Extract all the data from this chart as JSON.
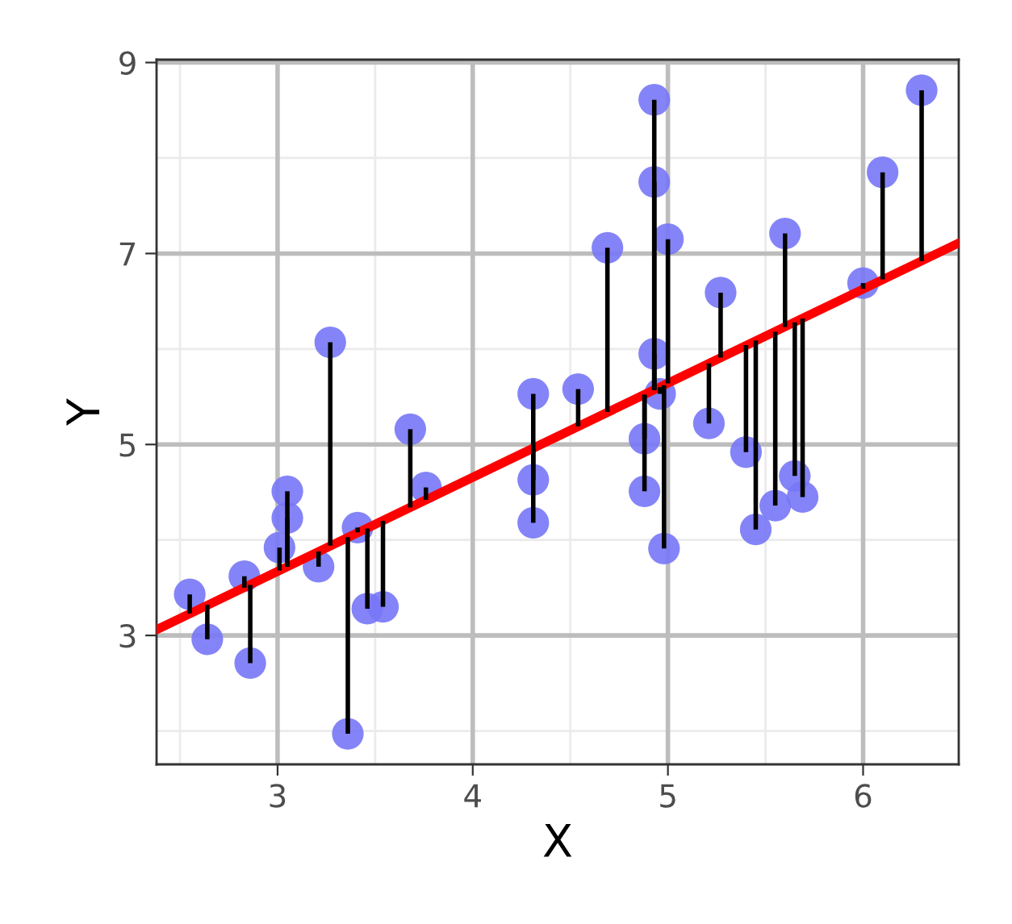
{
  "chart_data": {
    "type": "scatter",
    "xlabel": "X",
    "ylabel": "Y",
    "xlim": [
      2.38,
      6.49
    ],
    "ylim": [
      1.65,
      9.03
    ],
    "xticks": [
      3,
      4,
      5,
      6
    ],
    "yticks": [
      3,
      5,
      7,
      9
    ],
    "grid": true,
    "series": [
      {
        "color": "#7777f7",
        "marker": "circle",
        "x": [
          2.55,
          2.64,
          2.83,
          2.86,
          3.01,
          3.05,
          3.05,
          3.21,
          3.27,
          3.36,
          3.41,
          3.46,
          3.54,
          3.68,
          3.76,
          4.31,
          4.31,
          4.31,
          4.54,
          4.69,
          4.88,
          4.88,
          4.93,
          4.93,
          4.93,
          4.96,
          4.98,
          5.0,
          5.21,
          5.27,
          5.4,
          5.45,
          5.55,
          5.6,
          5.65,
          5.69,
          6.0,
          6.1,
          6.3
        ],
        "values": [
          3.43,
          2.96,
          3.62,
          2.71,
          3.92,
          4.51,
          4.23,
          3.72,
          6.07,
          1.97,
          4.13,
          3.28,
          3.3,
          5.16,
          4.55,
          5.53,
          4.63,
          4.18,
          5.58,
          7.06,
          5.06,
          4.51,
          8.61,
          7.75,
          5.95,
          5.53,
          3.91,
          7.15,
          5.22,
          6.59,
          4.92,
          4.11,
          4.36,
          7.21,
          4.67,
          4.45,
          6.69,
          7.85,
          8.71
        ],
        "errors": [
          [
            3.23,
            3.43
          ],
          [
            2.96,
            3.32
          ],
          [
            3.5,
            3.62
          ],
          [
            2.71,
            3.53
          ],
          [
            3.68,
            3.92
          ],
          [
            3.72,
            4.51
          ],
          [
            3.72,
            4.23
          ],
          [
            3.72,
            3.88
          ],
          [
            3.94,
            6.07
          ],
          [
            1.97,
            4.03
          ],
          [
            4.08,
            4.13
          ],
          [
            3.28,
            4.12
          ],
          [
            3.3,
            4.2
          ],
          [
            4.34,
            5.16
          ],
          [
            4.42,
            4.55
          ],
          [
            4.96,
            5.53
          ],
          [
            4.63,
            4.96
          ],
          [
            4.18,
            4.96
          ],
          [
            5.19,
            5.58
          ],
          [
            5.34,
            7.06
          ],
          [
            5.06,
            5.52
          ],
          [
            4.51,
            5.52
          ],
          [
            5.57,
            8.61
          ],
          [
            5.57,
            7.75
          ],
          [
            5.57,
            5.95
          ],
          [
            5.53,
            5.6
          ],
          [
            3.91,
            5.62
          ],
          [
            5.64,
            7.15
          ],
          [
            5.22,
            5.85
          ],
          [
            5.91,
            6.59
          ],
          [
            4.92,
            6.04
          ],
          [
            4.11,
            6.09
          ],
          [
            4.36,
            6.18
          ],
          [
            6.23,
            7.21
          ],
          [
            4.67,
            6.28
          ],
          [
            4.45,
            6.32
          ],
          [
            6.63,
            6.69
          ],
          [
            6.73,
            7.85
          ],
          [
            6.92,
            8.71
          ]
        ]
      },
      {
        "type": "line",
        "color": "#ff0000",
        "x": [
          2.38,
          6.49
        ],
        "values": [
          3.06,
          7.11
        ]
      }
    ]
  }
}
